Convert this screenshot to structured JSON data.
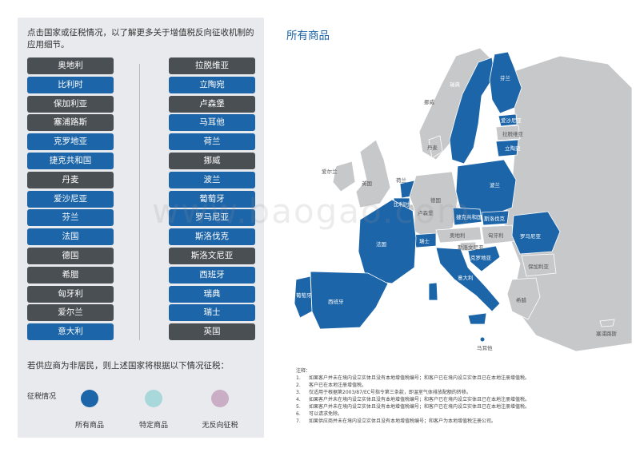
{
  "intro_text": "点击国家或征税情况，以了解更多关于增值税反向征收机制的应用细节。",
  "left_column": [
    {
      "label": "奥地利",
      "status": "dark"
    },
    {
      "label": "比利时",
      "status": "blue"
    },
    {
      "label": "保加利亚",
      "status": "dark"
    },
    {
      "label": "塞浦路斯",
      "status": "dark"
    },
    {
      "label": "克罗地亚",
      "status": "blue"
    },
    {
      "label": "捷克共和国",
      "status": "blue"
    },
    {
      "label": "丹麦",
      "status": "dark"
    },
    {
      "label": "爱沙尼亚",
      "status": "blue"
    },
    {
      "label": "芬兰",
      "status": "blue"
    },
    {
      "label": "法国",
      "status": "blue"
    },
    {
      "label": "德国",
      "status": "dark"
    },
    {
      "label": "希腊",
      "status": "dark"
    },
    {
      "label": "匈牙利",
      "status": "dark"
    },
    {
      "label": "爱尔兰",
      "status": "dark"
    },
    {
      "label": "意大利",
      "status": "blue"
    }
  ],
  "right_column": [
    {
      "label": "拉脱维亚",
      "status": "dark"
    },
    {
      "label": "立陶宛",
      "status": "blue"
    },
    {
      "label": "卢森堡",
      "status": "dark"
    },
    {
      "label": "马耳他",
      "status": "blue"
    },
    {
      "label": "荷兰",
      "status": "blue"
    },
    {
      "label": "挪威",
      "status": "dark"
    },
    {
      "label": "波兰",
      "status": "blue"
    },
    {
      "label": "葡萄牙",
      "status": "blue"
    },
    {
      "label": "罗马尼亚",
      "status": "blue"
    },
    {
      "label": "斯洛伐克",
      "status": "blue"
    },
    {
      "label": "斯洛文尼亚",
      "status": "dark"
    },
    {
      "label": "西班牙",
      "status": "blue"
    },
    {
      "label": "瑞典",
      "status": "blue"
    },
    {
      "label": "瑞士",
      "status": "blue"
    },
    {
      "label": "英国",
      "status": "dark"
    }
  ],
  "nonresident_text": "若供应商为非居民，则上述国家将根据以下情况征税：",
  "legend": {
    "label": "征税情况",
    "items": [
      {
        "caption": "所有商品",
        "color": "#1c65a8"
      },
      {
        "caption": "特定商品",
        "color": "#a8d8da"
      },
      {
        "caption": "无反向征税",
        "color": "#c9aec6"
      }
    ]
  },
  "map_title": "所有商品",
  "colors": {
    "blue": "#1c65a8",
    "dark": "#4a4f54",
    "grey": "#c7c8ca"
  },
  "map_labels": {
    "finland": "芬兰",
    "sweden": "瑞典",
    "norway": "挪威",
    "estonia": "爱沙尼亚",
    "latvia": "拉脱维亚",
    "lithuania": "立陶宛",
    "denmark": "丹麦",
    "ireland": "爱尔兰",
    "uk": "英国",
    "netherlands": "荷兰",
    "belgium": "比利时",
    "luxembourg": "卢森堡",
    "germany": "德国",
    "poland": "波兰",
    "czech": "捷克共和国",
    "slovakia": "斯洛伐克",
    "austria": "奥地利",
    "hungary": "匈牙利",
    "slovenia": "斯洛文尼亚",
    "croatia": "克罗地亚",
    "switzerland": "瑞士",
    "france": "法国",
    "italy": "意大利",
    "romania": "罗马尼亚",
    "bulgaria": "保加利亚",
    "greece": "希腊",
    "portugal": "葡萄牙",
    "spain": "西班牙",
    "cyprus": "塞浦路斯",
    "malta": "马耳他"
  },
  "notes": {
    "heading": "注释：",
    "items": [
      {
        "num": "1.",
        "text": "如果客户并未在境内设立实体且没有本地增值税编号；和客户已在境内设立实体且已在本地注册增值税。"
      },
      {
        "num": "2.",
        "text": "客户已在本地注册增值税。"
      },
      {
        "num": "3.",
        "text": "仅适用于根据第2003/87/EC号指令第三条款，即温室气体排放配额的转移。"
      },
      {
        "num": "4.",
        "text": "如果客户并未在境内设立实体且没有本地增值税编号；和客户已在境内设立实体且已在本地注册增值税。"
      },
      {
        "num": "5.",
        "text": "如果客户并未在境内设立实体且没有本地增值税编号；和客户已在境内设立实体且已在本地注册增值税。"
      },
      {
        "num": "6.",
        "text": "可以请求免除。"
      },
      {
        "num": "7.",
        "text": "如果供应商并未在境内设立实体且没有本地增值税编号；和客户为本地增值税注册公司。"
      }
    ]
  },
  "watermark": "www.baogao.com"
}
